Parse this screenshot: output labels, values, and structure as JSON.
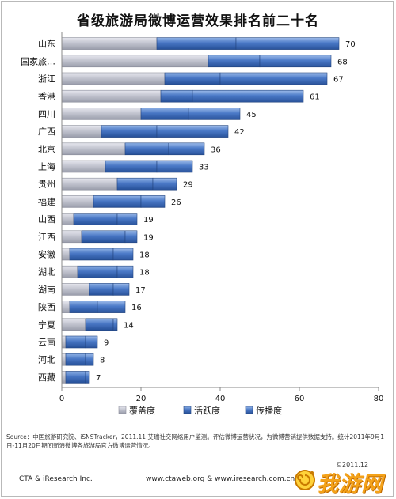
{
  "title": "省级旅游局微博运营效果排名前二十名",
  "chart_data": {
    "type": "bar",
    "orientation": "horizontal",
    "stacked": true,
    "categories": [
      "山东",
      "国家旅…",
      "浙江",
      "香港",
      "四川",
      "广西",
      "北京",
      "上海",
      "贵州",
      "福建",
      "山西",
      "江西",
      "安徽",
      "湖北",
      "湖南",
      "陕西",
      "宁夏",
      "云南",
      "河北",
      "西藏"
    ],
    "series": [
      {
        "name": "覆盖度",
        "color": "#b7b9c4",
        "values": [
          24,
          37,
          26,
          25,
          20,
          10,
          16,
          11,
          14,
          8,
          3,
          5,
          2,
          4,
          7,
          2,
          6,
          1,
          1,
          1
        ]
      },
      {
        "name": "活跃度",
        "color": "#3d6bb5",
        "values": [
          20,
          13,
          14,
          8,
          12,
          14,
          11,
          13,
          9,
          12,
          11,
          11,
          11,
          10,
          6,
          7,
          7,
          5,
          5,
          5
        ]
      },
      {
        "name": "传播度",
        "color": "#3566b0",
        "values": [
          26,
          18,
          27,
          28,
          13,
          18,
          9,
          9,
          6,
          6,
          5,
          3,
          5,
          4,
          4,
          7,
          1,
          3,
          2,
          1
        ]
      }
    ],
    "totals": [
      70,
      68,
      67,
      61,
      45,
      42,
      36,
      33,
      29,
      26,
      19,
      19,
      18,
      18,
      17,
      16,
      14,
      9,
      8,
      7
    ],
    "xlim": [
      0,
      80
    ],
    "xticks": [
      0,
      20,
      40,
      60,
      80
    ],
    "legend_position": "bottom",
    "grid": false
  },
  "source": "Source：中国旅游研究院、iSNSTracker，2011.11 艾瑞社交网络用户监测。评估微博运营状况，为微博营销提供数据支持。统计2011年9月1日-11月20日期间新浪微博各旅游局官方微博运营情况。",
  "date": "©2011.12",
  "footer": {
    "company": "CTA & iResearch Inc.",
    "sites": "www.ctaweb.org  &  www.iresearch.com.cn"
  },
  "watermark": "我游网"
}
